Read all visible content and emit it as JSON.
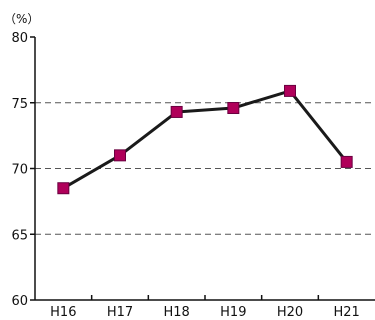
{
  "chart_data": {
    "type": "line",
    "title": "",
    "xlabel": "",
    "ylabel": "",
    "unit_label": "（%）",
    "categories": [
      "H16",
      "H17",
      "H18",
      "H19",
      "H20",
      "H21"
    ],
    "series": [
      {
        "values": [
          68.5,
          71.0,
          74.3,
          74.6,
          75.9,
          70.5
        ]
      }
    ],
    "ylim": [
      60,
      80
    ],
    "yticks": [
      60,
      65,
      70,
      75,
      80
    ],
    "dashed_gridlines": [
      65,
      70,
      75
    ],
    "legend": "none",
    "colors": {
      "line": "#1a1a1a",
      "marker": "#b0005a",
      "marker_edge": "#6a0040",
      "axis": "#111111",
      "grid": "#555555"
    }
  }
}
